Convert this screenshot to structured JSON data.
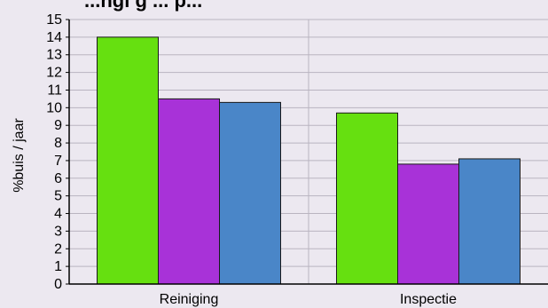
{
  "chart_data": {
    "type": "bar",
    "title": "...ngi g ... p...",
    "ylabel": "%buis / jaar",
    "xlabel": "",
    "ylim": [
      0,
      15
    ],
    "yticks": [
      "0",
      "1",
      "2",
      "3",
      "4",
      "5",
      "6",
      "7",
      "8",
      "9",
      "10",
      "11",
      "12",
      "13",
      "14",
      "15"
    ],
    "categories": [
      "Reiniging",
      "Inspectie"
    ],
    "series": [
      {
        "values": [
          14,
          9.7
        ],
        "color": "#66e010"
      },
      {
        "values": [
          10.5,
          6.8
        ],
        "color": "#a832d8"
      },
      {
        "values": [
          10.3,
          7.1
        ],
        "color": "#4a86c8"
      }
    ],
    "grid": true,
    "colors": {
      "background": "#ece8f0",
      "grid": "#b9b4c0",
      "axis": "#000000"
    }
  }
}
